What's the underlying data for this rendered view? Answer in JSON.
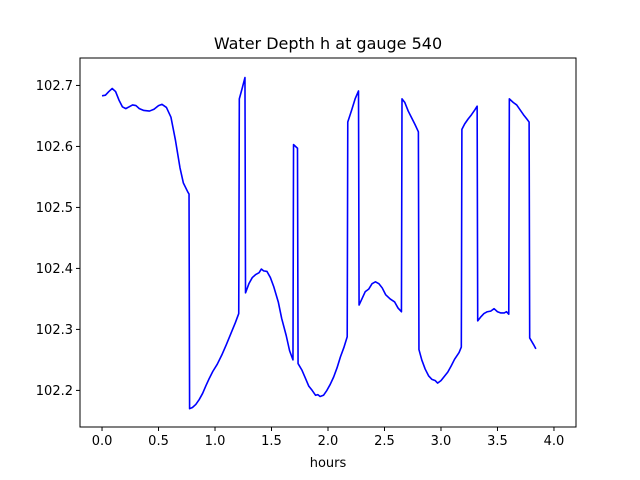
{
  "chart_data": {
    "type": "line",
    "title": "Water Depth h at gauge 540",
    "xlabel": "hours",
    "ylabel": "",
    "xlim": [
      -0.195,
      4.195
    ],
    "ylim": [
      102.14,
      102.745
    ],
    "x_ticks": [
      0.0,
      0.5,
      1.0,
      1.5,
      2.0,
      2.5,
      3.0,
      3.5,
      4.0
    ],
    "x_tick_labels": [
      "0.0",
      "0.5",
      "1.0",
      "1.5",
      "2.0",
      "2.5",
      "3.0",
      "3.5",
      "4.0"
    ],
    "y_ticks": [
      102.2,
      102.3,
      102.4,
      102.5,
      102.6,
      102.7
    ],
    "y_tick_labels": [
      "102.2",
      "102.3",
      "102.4",
      "102.5",
      "102.6",
      "102.7"
    ],
    "grid": false,
    "series": [
      {
        "color": "#0000ff",
        "points": [
          [
            0.0,
            102.683
          ],
          [
            0.03,
            102.684
          ],
          [
            0.06,
            102.69
          ],
          [
            0.09,
            102.695
          ],
          [
            0.12,
            102.69
          ],
          [
            0.15,
            102.676
          ],
          [
            0.18,
            102.665
          ],
          [
            0.21,
            102.662
          ],
          [
            0.24,
            102.665
          ],
          [
            0.27,
            102.668
          ],
          [
            0.3,
            102.667
          ],
          [
            0.33,
            102.662
          ],
          [
            0.37,
            102.659
          ],
          [
            0.42,
            102.658
          ],
          [
            0.46,
            102.661
          ],
          [
            0.5,
            102.667
          ],
          [
            0.53,
            102.669
          ],
          [
            0.57,
            102.664
          ],
          [
            0.61,
            102.648
          ],
          [
            0.65,
            102.61
          ],
          [
            0.69,
            102.565
          ],
          [
            0.72,
            102.54
          ],
          [
            0.76,
            102.525
          ],
          [
            0.77,
            102.522
          ],
          [
            0.775,
            102.17
          ],
          [
            0.8,
            102.172
          ],
          [
            0.83,
            102.177
          ],
          [
            0.86,
            102.185
          ],
          [
            0.89,
            102.195
          ],
          [
            0.92,
            102.208
          ],
          [
            0.95,
            102.22
          ],
          [
            0.98,
            102.231
          ],
          [
            1.02,
            102.243
          ],
          [
            1.06,
            102.258
          ],
          [
            1.1,
            102.275
          ],
          [
            1.14,
            102.293
          ],
          [
            1.18,
            102.311
          ],
          [
            1.21,
            102.326
          ],
          [
            1.215,
            102.678
          ],
          [
            1.24,
            102.695
          ],
          [
            1.265,
            102.713
          ],
          [
            1.27,
            102.36
          ],
          [
            1.3,
            102.375
          ],
          [
            1.33,
            102.385
          ],
          [
            1.36,
            102.39
          ],
          [
            1.39,
            102.393
          ],
          [
            1.41,
            102.399
          ],
          [
            1.43,
            102.396
          ],
          [
            1.46,
            102.395
          ],
          [
            1.49,
            102.385
          ],
          [
            1.52,
            102.37
          ],
          [
            1.56,
            102.345
          ],
          [
            1.59,
            102.318
          ],
          [
            1.63,
            102.29
          ],
          [
            1.66,
            102.265
          ],
          [
            1.69,
            102.25
          ],
          [
            1.695,
            102.603
          ],
          [
            1.73,
            102.597
          ],
          [
            1.735,
            102.244
          ],
          [
            1.77,
            102.233
          ],
          [
            1.8,
            102.22
          ],
          [
            1.83,
            102.207
          ],
          [
            1.86,
            102.2
          ],
          [
            1.89,
            102.192
          ],
          [
            1.91,
            102.193
          ],
          [
            1.93,
            102.19
          ],
          [
            1.96,
            102.192
          ],
          [
            1.99,
            102.2
          ],
          [
            2.02,
            102.21
          ],
          [
            2.05,
            102.222
          ],
          [
            2.08,
            102.237
          ],
          [
            2.11,
            102.255
          ],
          [
            2.14,
            102.27
          ],
          [
            2.17,
            102.288
          ],
          [
            2.175,
            102.64
          ],
          [
            2.21,
            102.66
          ],
          [
            2.24,
            102.678
          ],
          [
            2.27,
            102.691
          ],
          [
            2.275,
            102.34
          ],
          [
            2.3,
            102.35
          ],
          [
            2.33,
            102.362
          ],
          [
            2.36,
            102.366
          ],
          [
            2.39,
            102.375
          ],
          [
            2.42,
            102.378
          ],
          [
            2.45,
            102.375
          ],
          [
            2.48,
            102.368
          ],
          [
            2.51,
            102.357
          ],
          [
            2.55,
            102.35
          ],
          [
            2.59,
            102.345
          ],
          [
            2.62,
            102.335
          ],
          [
            2.65,
            102.329
          ],
          [
            2.655,
            102.678
          ],
          [
            2.68,
            102.672
          ],
          [
            2.71,
            102.658
          ],
          [
            2.74,
            102.647
          ],
          [
            2.77,
            102.636
          ],
          [
            2.8,
            102.624
          ],
          [
            2.805,
            102.267
          ],
          [
            2.83,
            102.25
          ],
          [
            2.86,
            102.235
          ],
          [
            2.89,
            102.224
          ],
          [
            2.92,
            102.218
          ],
          [
            2.95,
            102.216
          ],
          [
            2.97,
            102.212
          ],
          [
            3.0,
            102.216
          ],
          [
            3.03,
            102.223
          ],
          [
            3.06,
            102.23
          ],
          [
            3.09,
            102.24
          ],
          [
            3.12,
            102.251
          ],
          [
            3.16,
            102.262
          ],
          [
            3.18,
            102.271
          ],
          [
            3.185,
            102.628
          ],
          [
            3.21,
            102.637
          ],
          [
            3.24,
            102.645
          ],
          [
            3.27,
            102.652
          ],
          [
            3.3,
            102.66
          ],
          [
            3.32,
            102.666
          ],
          [
            3.325,
            102.314
          ],
          [
            3.35,
            102.32
          ],
          [
            3.38,
            102.326
          ],
          [
            3.41,
            102.329
          ],
          [
            3.44,
            102.33
          ],
          [
            3.47,
            102.334
          ],
          [
            3.5,
            102.329
          ],
          [
            3.53,
            102.327
          ],
          [
            3.56,
            102.327
          ],
          [
            3.58,
            102.329
          ],
          [
            3.6,
            102.325
          ],
          [
            3.605,
            102.678
          ],
          [
            3.64,
            102.672
          ],
          [
            3.67,
            102.668
          ],
          [
            3.7,
            102.66
          ],
          [
            3.73,
            102.652
          ],
          [
            3.76,
            102.645
          ],
          [
            3.78,
            102.64
          ],
          [
            3.785,
            102.286
          ],
          [
            3.82,
            102.275
          ],
          [
            3.84,
            102.268
          ]
        ]
      }
    ]
  }
}
